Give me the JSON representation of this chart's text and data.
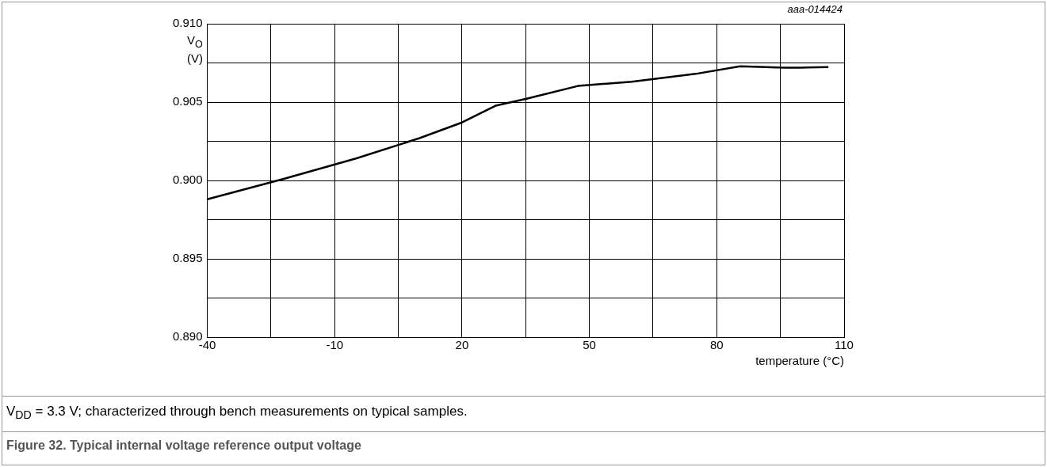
{
  "chart_data": {
    "type": "line",
    "title": "Figure 32. Typical internal voltage reference output voltage",
    "xlabel": "temperature (°C)",
    "ylabel": "V$_{O}$ (V)",
    "annotations": [
      "aaa-014424",
      "V$_{DD}$ = 3.3 V; characterized through bench measurements on typical samples."
    ],
    "series": [
      {
        "color": "#000000",
        "x": [
          -40,
          -22,
          -5,
          10,
          20,
          27.9,
          35,
          47.3,
          60,
          75,
          85.5,
          90,
          95.9,
          100,
          106.3
        ],
        "values": [
          0.8988,
          0.9001,
          0.9014,
          0.9027,
          0.9037,
          0.90477,
          0.9052,
          0.90603,
          0.9063,
          0.9068,
          0.90729,
          0.90725,
          0.9072,
          0.9072,
          0.90724
        ]
      }
    ],
    "xlim": [
      -40,
      110
    ],
    "xticks": [
      -40,
      {
        "value": -25,
        "label": null
      },
      -10,
      {
        "value": 5,
        "label": null
      },
      20,
      {
        "value": 35,
        "label": null
      },
      50,
      {
        "value": 65,
        "label": null
      },
      80,
      {
        "value": 95,
        "label": null
      },
      110
    ],
    "ylim": [
      0.89,
      0.91
    ],
    "yticks": [
      {
        "value": 0.89,
        "label": "0.890"
      },
      {
        "value": 0.8925,
        "label": null
      },
      {
        "value": 0.895,
        "label": "0.895"
      },
      {
        "value": 0.8975,
        "label": null
      },
      {
        "value": 0.9,
        "label": "0.900"
      },
      {
        "value": 0.9025,
        "label": null
      },
      {
        "value": 0.905,
        "label": "0.905"
      },
      {
        "value": 0.9075,
        "label": null
      },
      {
        "value": 0.91,
        "label": "0.910"
      }
    ],
    "grid": true,
    "legend": false,
    "marker": "none",
    "line_style": "solid"
  }
}
